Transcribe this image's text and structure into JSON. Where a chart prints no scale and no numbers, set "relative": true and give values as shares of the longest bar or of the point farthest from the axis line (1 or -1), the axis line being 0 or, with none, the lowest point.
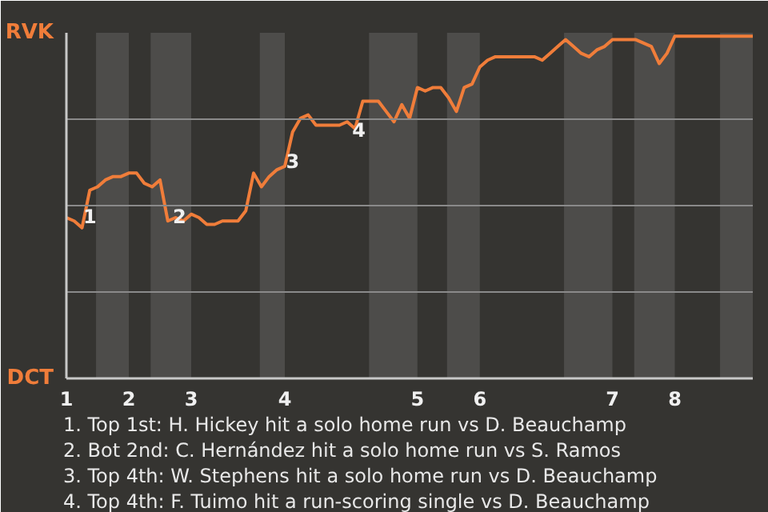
{
  "chart_data": {
    "type": "line",
    "relative": true,
    "categories": [
      "1",
      null,
      null,
      null,
      null,
      null,
      null,
      null,
      "2",
      null,
      null,
      null,
      null,
      null,
      null,
      null,
      "3",
      null,
      null,
      null,
      null,
      null,
      null,
      null,
      null,
      null,
      null,
      null,
      "4",
      null,
      null,
      null,
      null,
      null,
      null,
      null,
      null,
      null,
      null,
      null,
      null,
      null,
      null,
      null,
      null,
      "5",
      null,
      null,
      null,
      null,
      null,
      null,
      null,
      "6",
      null,
      null,
      null,
      null,
      null,
      null,
      null,
      null,
      null,
      null,
      null,
      null,
      null,
      null,
      null,
      null,
      "7",
      null,
      null,
      null,
      null,
      null,
      null,
      null,
      "8",
      null,
      null,
      null,
      null,
      null,
      null,
      null,
      null,
      null,
      null
    ],
    "series": [
      {
        "color": "#f07d3a",
        "values": [
          0.47,
          0.46,
          0.44,
          0.55,
          0.56,
          0.58,
          0.59,
          0.59,
          0.6,
          0.6,
          0.57,
          0.56,
          0.58,
          0.46,
          0.47,
          0.46,
          0.48,
          0.47,
          0.45,
          0.45,
          0.46,
          0.46,
          0.46,
          0.49,
          0.6,
          0.56,
          0.59,
          0.61,
          0.62,
          0.72,
          0.76,
          0.77,
          0.74,
          0.74,
          0.74,
          0.74,
          0.75,
          0.73,
          0.81,
          0.81,
          0.81,
          0.78,
          0.75,
          0.8,
          0.76,
          0.85,
          0.84,
          0.85,
          0.85,
          0.82,
          0.78,
          0.85,
          0.86,
          0.91,
          0.93,
          0.94,
          0.94,
          0.94,
          0.94,
          0.94,
          0.94,
          0.93,
          0.95,
          0.97,
          0.99,
          0.97,
          0.95,
          0.94,
          0.96,
          0.97,
          0.99,
          0.99,
          0.99,
          0.99,
          0.98,
          0.97,
          0.92,
          0.95,
          1,
          1,
          1,
          1,
          1,
          1,
          1,
          1,
          1,
          1,
          1
        ]
      }
    ],
    "grid": "y",
    "annotations": [
      "RVK",
      "DCT",
      "1",
      "2",
      "3",
      "4",
      "1. Top 1st: H. Hickey hit a solo home run vs D. Beauchamp",
      "2. Bot 2nd: C. Hernández hit a solo home run vs S. Ramos",
      "3. Top 4th: W. Stephens hit a solo home run vs D. Beauchamp",
      "4. Top 4th: F. Tuimo hit a run-scoring single vs D. Beauchamp"
    ]
  }
}
